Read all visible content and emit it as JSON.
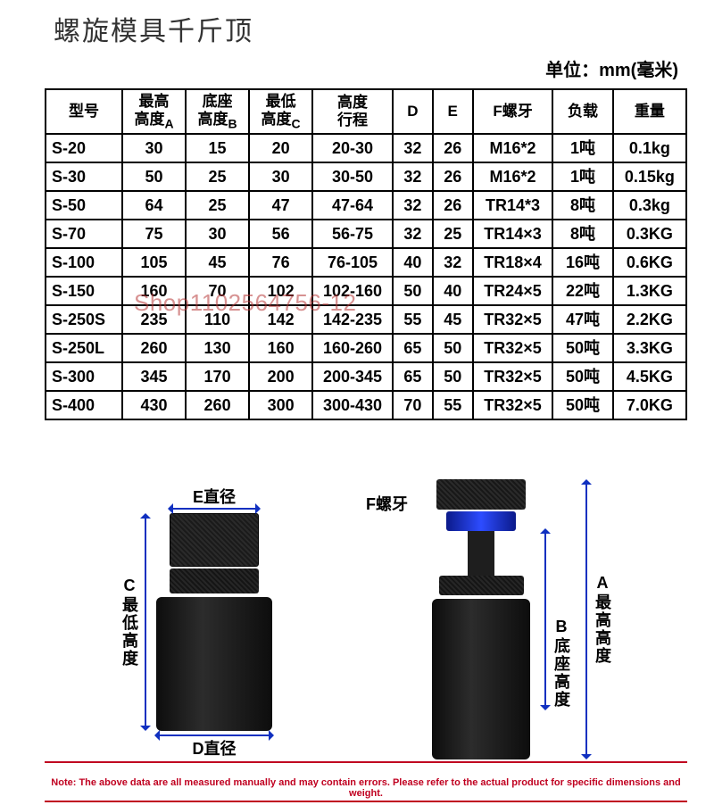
{
  "title": "螺旋模具千斤顶",
  "unit_label": "单位：mm(毫米)",
  "watermark": "Shop1102564756-12",
  "note": "Note: The above data are all measured manually and may contain errors. Please refer to the actual product for specific dimensions and weight.",
  "colors": {
    "border": "#000000",
    "text": "#000000",
    "arrow": "#1030c0",
    "note": "#c00020",
    "watermark": "#b83a3a",
    "jack_body": "#1a1a1a",
    "nut_blue": "#2d4cff"
  },
  "table": {
    "headers": [
      {
        "main": "型号",
        "sub": ""
      },
      {
        "main": "最高",
        "sub": "高度",
        "suffix": "A"
      },
      {
        "main": "底座",
        "sub": "高度",
        "suffix": "B"
      },
      {
        "main": "最低",
        "sub": "高度",
        "suffix": "C"
      },
      {
        "main": "高度",
        "sub": "行程",
        "suffix": ""
      },
      {
        "main": "D",
        "sub": ""
      },
      {
        "main": "E",
        "sub": ""
      },
      {
        "main": "F螺牙",
        "sub": ""
      },
      {
        "main": "负载",
        "sub": ""
      },
      {
        "main": "重量",
        "sub": ""
      }
    ],
    "rows": [
      [
        "S-20",
        "30",
        "15",
        "20",
        "20-30",
        "32",
        "26",
        "M16*2",
        "1吨",
        "0.1kg"
      ],
      [
        "S-30",
        "50",
        "25",
        "30",
        "30-50",
        "32",
        "26",
        "M16*2",
        "1吨",
        "0.15kg"
      ],
      [
        "S-50",
        "64",
        "25",
        "47",
        "47-64",
        "32",
        "26",
        "TR14*3",
        "8吨",
        "0.3kg"
      ],
      [
        "S-70",
        "75",
        "30",
        "56",
        "56-75",
        "32",
        "25",
        "TR14×3",
        "8吨",
        "0.3KG"
      ],
      [
        "S-100",
        "105",
        "45",
        "76",
        "76-105",
        "40",
        "32",
        "TR18×4",
        "16吨",
        "0.6KG"
      ],
      [
        "S-150",
        "160",
        "70",
        "102",
        "102-160",
        "50",
        "40",
        "TR24×5",
        "22吨",
        "1.3KG"
      ],
      [
        "S-250S",
        "235",
        "110",
        "142",
        "142-235",
        "55",
        "45",
        "TR32×5",
        "47吨",
        "2.2KG"
      ],
      [
        "S-250L",
        "260",
        "130",
        "160",
        "160-260",
        "65",
        "50",
        "TR32×5",
        "50吨",
        "3.3KG"
      ],
      [
        "S-300",
        "345",
        "170",
        "200",
        "200-345",
        "65",
        "50",
        "TR32×5",
        "50吨",
        "4.5KG"
      ],
      [
        "S-400",
        "430",
        "260",
        "300",
        "300-430",
        "70",
        "55",
        "TR32×5",
        "50吨",
        "7.0KG"
      ]
    ]
  },
  "diagram": {
    "left": {
      "E_label": "E直径",
      "C_label": "C最低高度",
      "D_label": "D直径"
    },
    "right": {
      "F_label": "F螺牙",
      "B_label": "B底座高度",
      "A_label": "A最高高度"
    }
  }
}
